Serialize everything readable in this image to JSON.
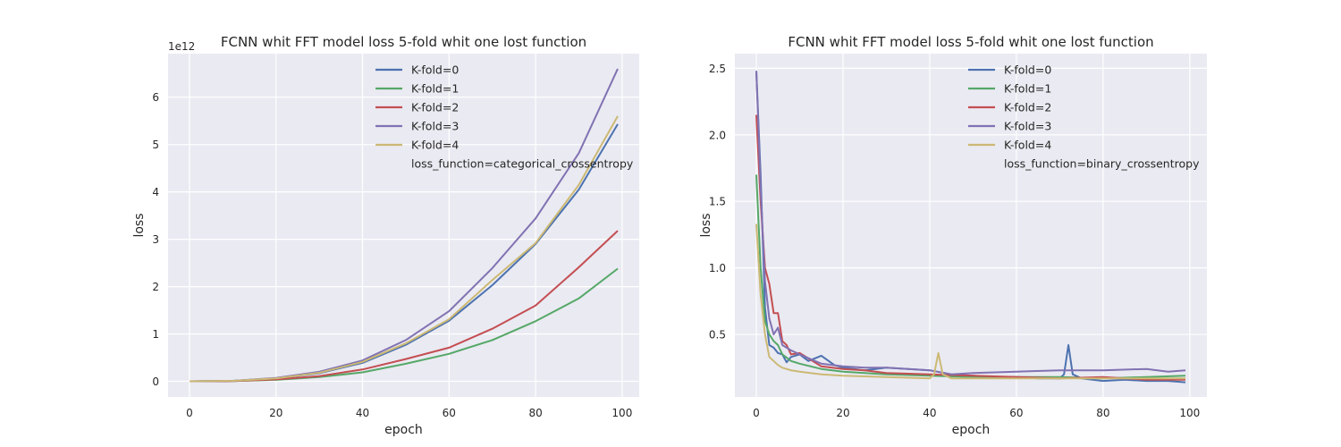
{
  "chart_data": [
    {
      "type": "line",
      "title": "FCNN whit FFT model loss 5-fold whit one lost function",
      "xlabel": "epoch",
      "ylabel": "loss",
      "offset_label": "1e12",
      "scale": 1000000000000.0,
      "xlim": [
        -4.95,
        103.95
      ],
      "ylim": [
        -0.33,
        6.92
      ],
      "xticks": [
        0,
        20,
        40,
        60,
        80,
        100
      ],
      "yticks": [
        0,
        1,
        2,
        3,
        4,
        5,
        6
      ],
      "grid": true,
      "legend_position": "upper-right",
      "legend_note": "loss_function=categorical_crossentropy",
      "series": [
        {
          "name": "K-fold=0",
          "color": "#4c72b0",
          "x": [
            0,
            10,
            20,
            30,
            40,
            50,
            60,
            70,
            80,
            90,
            99
          ],
          "y": [
            0.0,
            0.01,
            0.06,
            0.17,
            0.39,
            0.77,
            1.28,
            2.03,
            2.9,
            4.05,
            5.43
          ]
        },
        {
          "name": "K-fold=1",
          "color": "#55a868",
          "x": [
            0,
            10,
            20,
            30,
            40,
            50,
            60,
            70,
            80,
            90,
            99
          ],
          "y": [
            0.0,
            0.005,
            0.03,
            0.09,
            0.19,
            0.37,
            0.58,
            0.87,
            1.27,
            1.75,
            2.38
          ]
        },
        {
          "name": "K-fold=2",
          "color": "#c44e52",
          "x": [
            0,
            10,
            20,
            30,
            40,
            50,
            60,
            70,
            80,
            90,
            99
          ],
          "y": [
            0.0,
            0.005,
            0.04,
            0.11,
            0.25,
            0.47,
            0.71,
            1.11,
            1.6,
            2.41,
            3.18
          ]
        },
        {
          "name": "K-fold=3",
          "color": "#8172b2",
          "x": [
            0,
            10,
            20,
            30,
            40,
            50,
            60,
            70,
            80,
            90,
            99
          ],
          "y": [
            0.0,
            0.01,
            0.07,
            0.2,
            0.44,
            0.87,
            1.48,
            2.39,
            3.44,
            4.82,
            6.6
          ]
        },
        {
          "name": "K-fold=4",
          "color": "#ccb974",
          "x": [
            0,
            10,
            20,
            30,
            40,
            50,
            60,
            70,
            80,
            90,
            99
          ],
          "y": [
            0.0,
            0.01,
            0.06,
            0.18,
            0.41,
            0.8,
            1.31,
            2.14,
            2.92,
            4.15,
            5.6
          ]
        }
      ]
    },
    {
      "type": "line",
      "title": "FCNN whit FFT model loss 5-fold whit one lost function",
      "xlabel": "epoch",
      "ylabel": "loss",
      "offset_label": "",
      "scale": 1,
      "xlim": [
        -4.95,
        103.95
      ],
      "ylim": [
        0.03,
        2.61
      ],
      "xticks": [
        0,
        20,
        40,
        60,
        80,
        100
      ],
      "yticks": [
        0.5,
        1.0,
        1.5,
        2.0,
        2.5
      ],
      "grid": true,
      "legend_position": "upper-right",
      "legend_note": "loss_function=binary_crossentropy",
      "series": [
        {
          "name": "K-fold=0",
          "color": "#4c72b0",
          "x": [
            0,
            1,
            2,
            3,
            4,
            5,
            6,
            7,
            8,
            10,
            12,
            15,
            18,
            20,
            25,
            30,
            35,
            40,
            45,
            50,
            55,
            60,
            65,
            70,
            71,
            72,
            73,
            75,
            80,
            85,
            90,
            95,
            99
          ],
          "y": [
            2.48,
            1.7,
            0.7,
            0.42,
            0.4,
            0.36,
            0.35,
            0.29,
            0.33,
            0.35,
            0.3,
            0.34,
            0.27,
            0.25,
            0.23,
            0.25,
            0.24,
            0.23,
            0.2,
            0.19,
            0.18,
            0.18,
            0.17,
            0.17,
            0.2,
            0.42,
            0.2,
            0.17,
            0.15,
            0.16,
            0.15,
            0.15,
            0.14
          ]
        },
        {
          "name": "K-fold=1",
          "color": "#55a868",
          "x": [
            0,
            1,
            2,
            3,
            4,
            5,
            6,
            8,
            10,
            15,
            20,
            30,
            40,
            50,
            60,
            70,
            80,
            90,
            99
          ],
          "y": [
            1.7,
            1.0,
            0.6,
            0.5,
            0.45,
            0.42,
            0.35,
            0.3,
            0.28,
            0.24,
            0.22,
            0.2,
            0.19,
            0.18,
            0.18,
            0.18,
            0.17,
            0.18,
            0.19
          ]
        },
        {
          "name": "K-fold=2",
          "color": "#c44e52",
          "x": [
            0,
            1,
            2,
            3,
            4,
            5,
            6,
            7,
            8,
            10,
            15,
            20,
            25,
            30,
            40,
            50,
            60,
            70,
            80,
            90,
            99
          ],
          "y": [
            2.15,
            1.5,
            1.0,
            0.88,
            0.66,
            0.66,
            0.45,
            0.42,
            0.35,
            0.36,
            0.26,
            0.24,
            0.23,
            0.21,
            0.2,
            0.19,
            0.18,
            0.17,
            0.18,
            0.16,
            0.16
          ]
        },
        {
          "name": "K-fold=3",
          "color": "#8172b2",
          "x": [
            0,
            1,
            2,
            3,
            4,
            5,
            6,
            8,
            10,
            15,
            20,
            25,
            30,
            35,
            40,
            45,
            50,
            60,
            70,
            80,
            90,
            95,
            99
          ],
          "y": [
            2.48,
            1.6,
            0.9,
            0.62,
            0.5,
            0.55,
            0.42,
            0.38,
            0.35,
            0.28,
            0.26,
            0.25,
            0.25,
            0.24,
            0.23,
            0.2,
            0.21,
            0.22,
            0.23,
            0.23,
            0.24,
            0.22,
            0.23
          ]
        },
        {
          "name": "K-fold=4",
          "color": "#ccb974",
          "x": [
            0,
            1,
            2,
            3,
            4,
            5,
            6,
            8,
            10,
            15,
            20,
            30,
            40,
            41,
            42,
            43,
            45,
            50,
            60,
            70,
            80,
            90,
            99
          ],
          "y": [
            1.33,
            0.8,
            0.5,
            0.33,
            0.3,
            0.27,
            0.25,
            0.23,
            0.22,
            0.2,
            0.19,
            0.18,
            0.17,
            0.2,
            0.36,
            0.2,
            0.17,
            0.17,
            0.17,
            0.17,
            0.17,
            0.17,
            0.17
          ]
        }
      ]
    }
  ]
}
